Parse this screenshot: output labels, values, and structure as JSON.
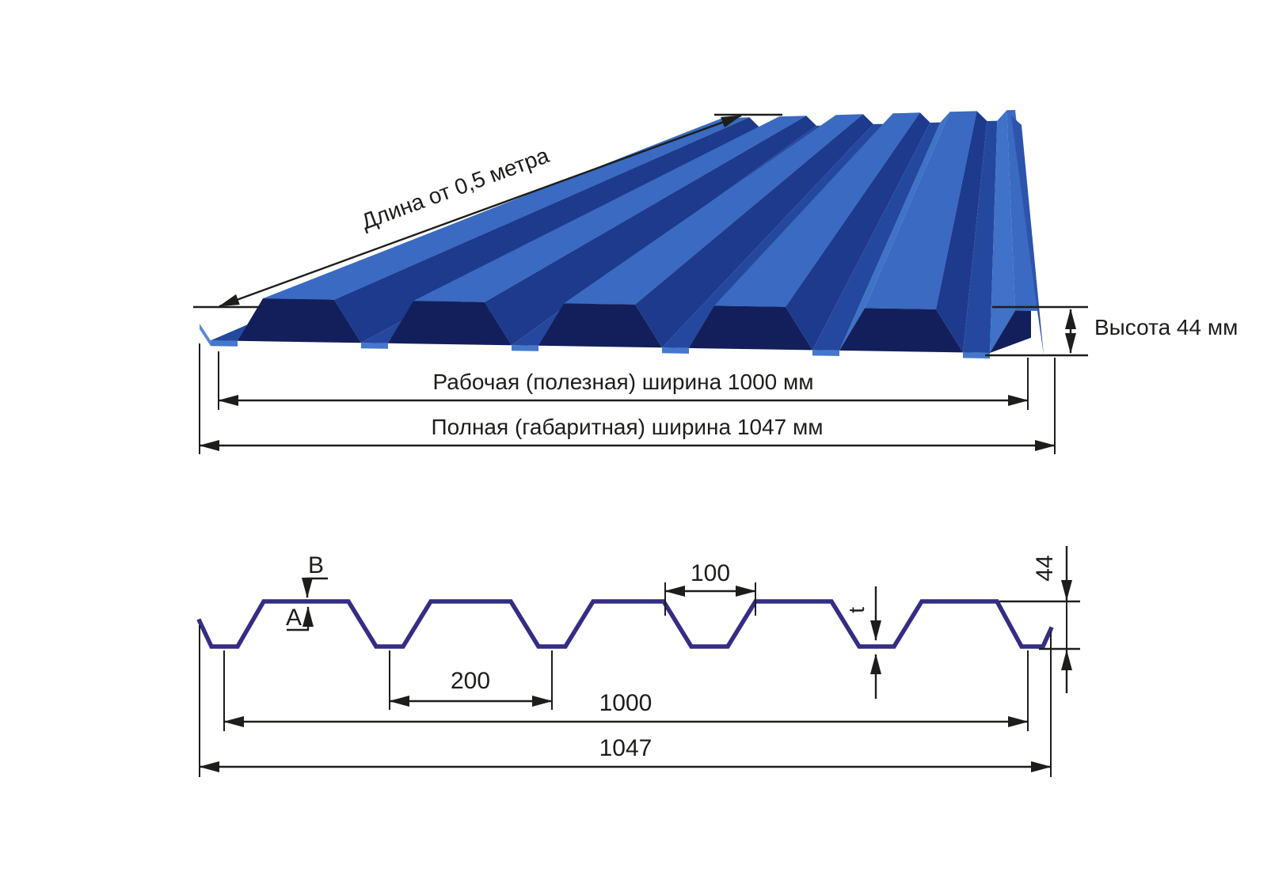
{
  "colors": {
    "sheet_bright": "#3f72c8",
    "sheet_crest": "#3a6ac1",
    "sheet_mid": "#24489e",
    "sheet_shadow": "#1d3a8d",
    "sheet_cavity": "#131f5b",
    "sheet_right_face": "#2d54ac",
    "sheet_front_edge": "#4577cd",
    "sheet_left_lip": "#5b87d6",
    "profile_stroke": "#332d85",
    "dimension_ink": "#1d1d1b",
    "background": "#ffffff"
  },
  "top_view": {
    "length_label": "Длина от 0,5 метра",
    "height_label": "Высота 44 мм",
    "working_width_label": "Рабочая (полезная) ширина 1000 мм",
    "overall_width_label": "Полная (габаритная) ширина 1047 мм"
  },
  "cross_section": {
    "side_top_label": "B",
    "side_bottom_label": "A",
    "opening_width_label": "100",
    "pitch_label": "200",
    "thickness_label": "t",
    "height_label": "44",
    "working_width_label": "1000",
    "overall_width_label": "1047"
  },
  "dimensions": {
    "min_length_m": "0,5",
    "profile_height_mm": 44,
    "working_width_mm": 1000,
    "overall_width_mm": 1047,
    "rib_pitch_mm": 200,
    "rib_opening_mm": 100
  }
}
